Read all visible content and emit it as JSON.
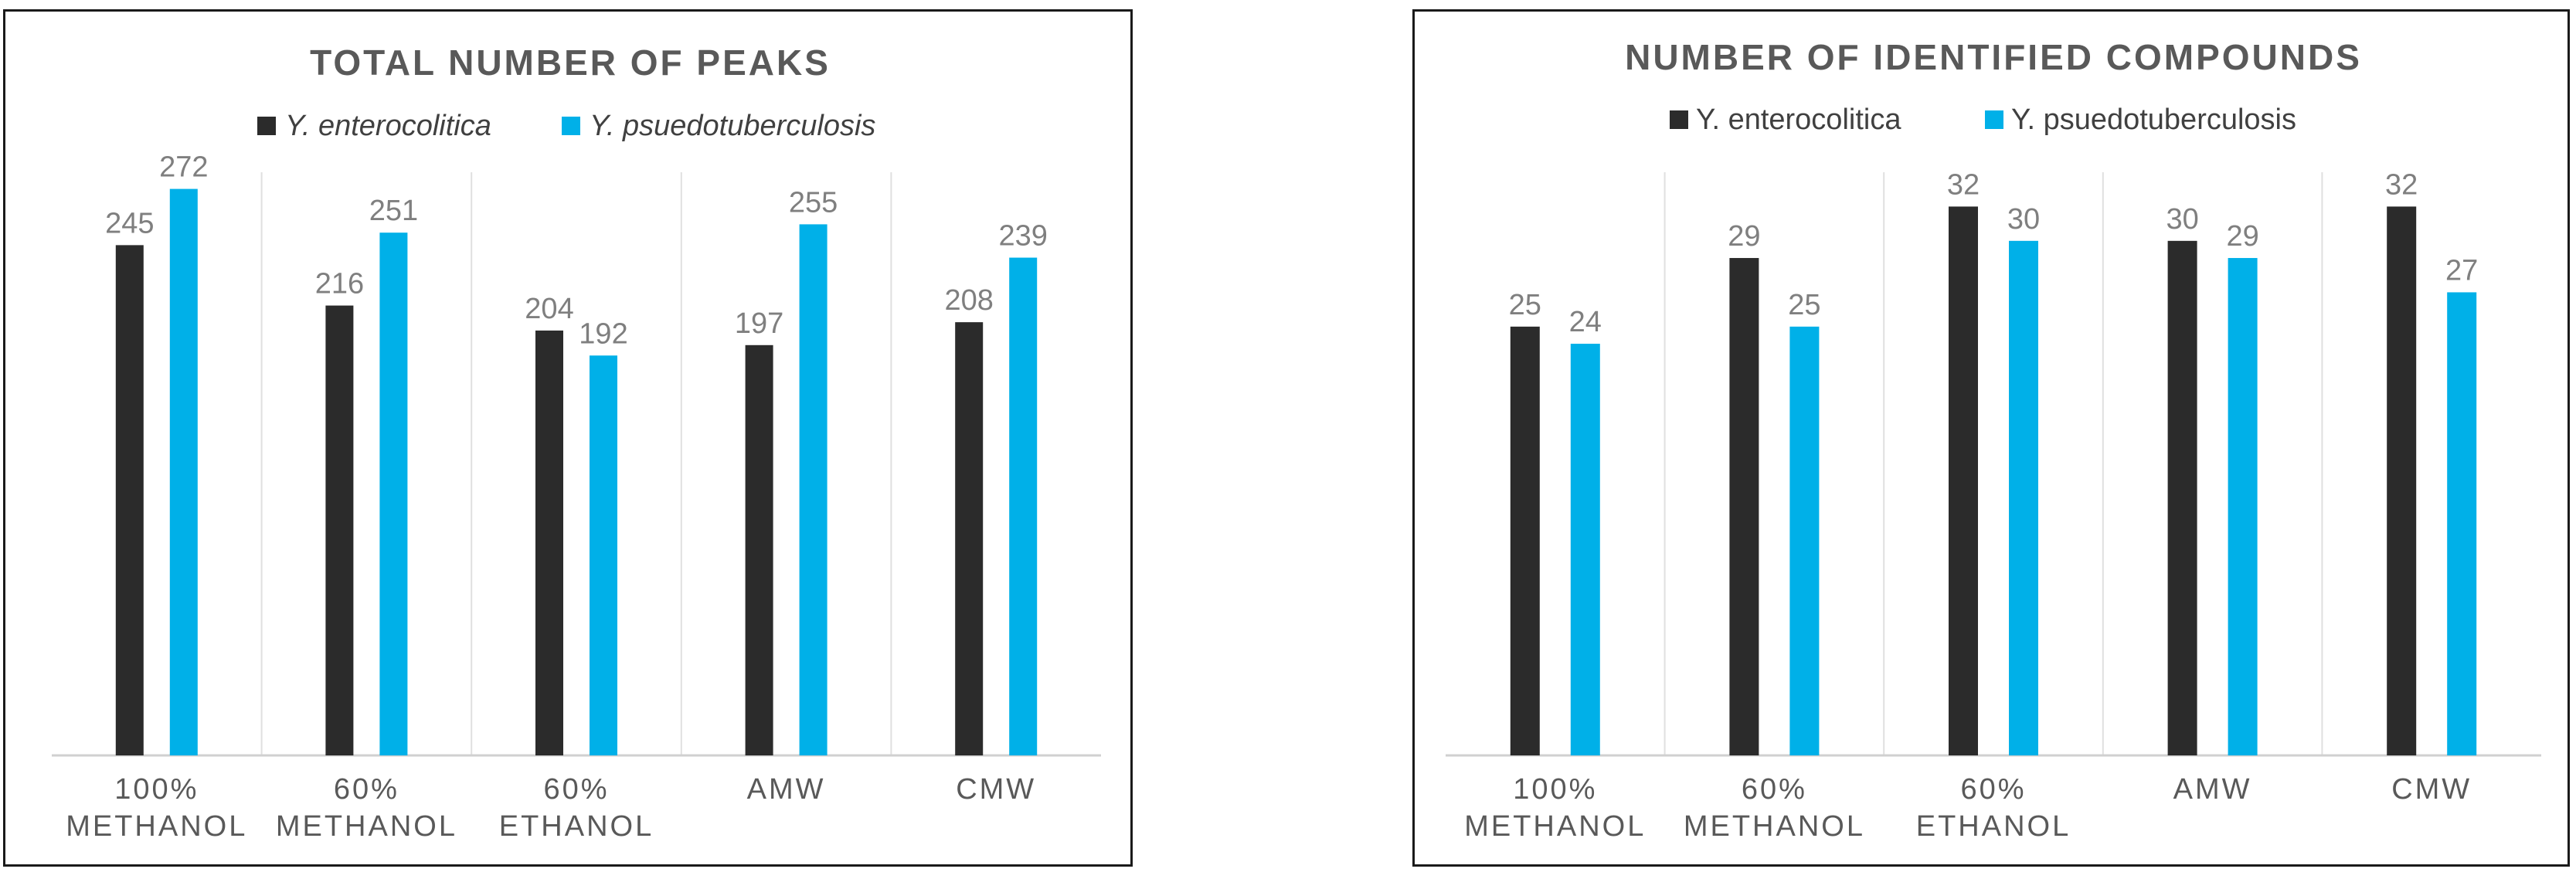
{
  "colors": {
    "series_1": "#2b2b2b",
    "series_2": "#00b0e8"
  },
  "chart_data": [
    {
      "type": "bar",
      "title": "TOTAL NUMBER OF PEAKS",
      "legend_italic": true,
      "legend_position": "top",
      "grid": "vertical separators",
      "categories": [
        [
          "100%",
          "METHANOL"
        ],
        [
          "60%",
          "METHANOL"
        ],
        [
          "60%",
          "ETHANOL"
        ],
        [
          "AMW"
        ],
        [
          "CMW"
        ]
      ],
      "series": [
        {
          "name": "Y. enterocolitica",
          "values": [
            245,
            216,
            204,
            197,
            208
          ]
        },
        {
          "name": "Y. psuedotuberculosis",
          "values": [
            272,
            251,
            192,
            255,
            239
          ]
        }
      ],
      "ylim": [
        0,
        280
      ]
    },
    {
      "type": "bar",
      "title": "NUMBER OF IDENTIFIED COMPOUNDS",
      "legend_italic": false,
      "legend_position": "top",
      "grid": "vertical separators",
      "categories": [
        [
          "100%",
          "METHANOL"
        ],
        [
          "60%",
          "METHANOL"
        ],
        [
          "60%",
          "ETHANOL"
        ],
        [
          "AMW"
        ],
        [
          "CMW"
        ]
      ],
      "series": [
        {
          "name": "Y. enterocolitica",
          "values": [
            25,
            29,
            32,
            30,
            32
          ]
        },
        {
          "name": "Y. psuedotuberculosis",
          "values": [
            24,
            25,
            30,
            29,
            27
          ]
        }
      ],
      "ylim": [
        0,
        34
      ]
    }
  ]
}
